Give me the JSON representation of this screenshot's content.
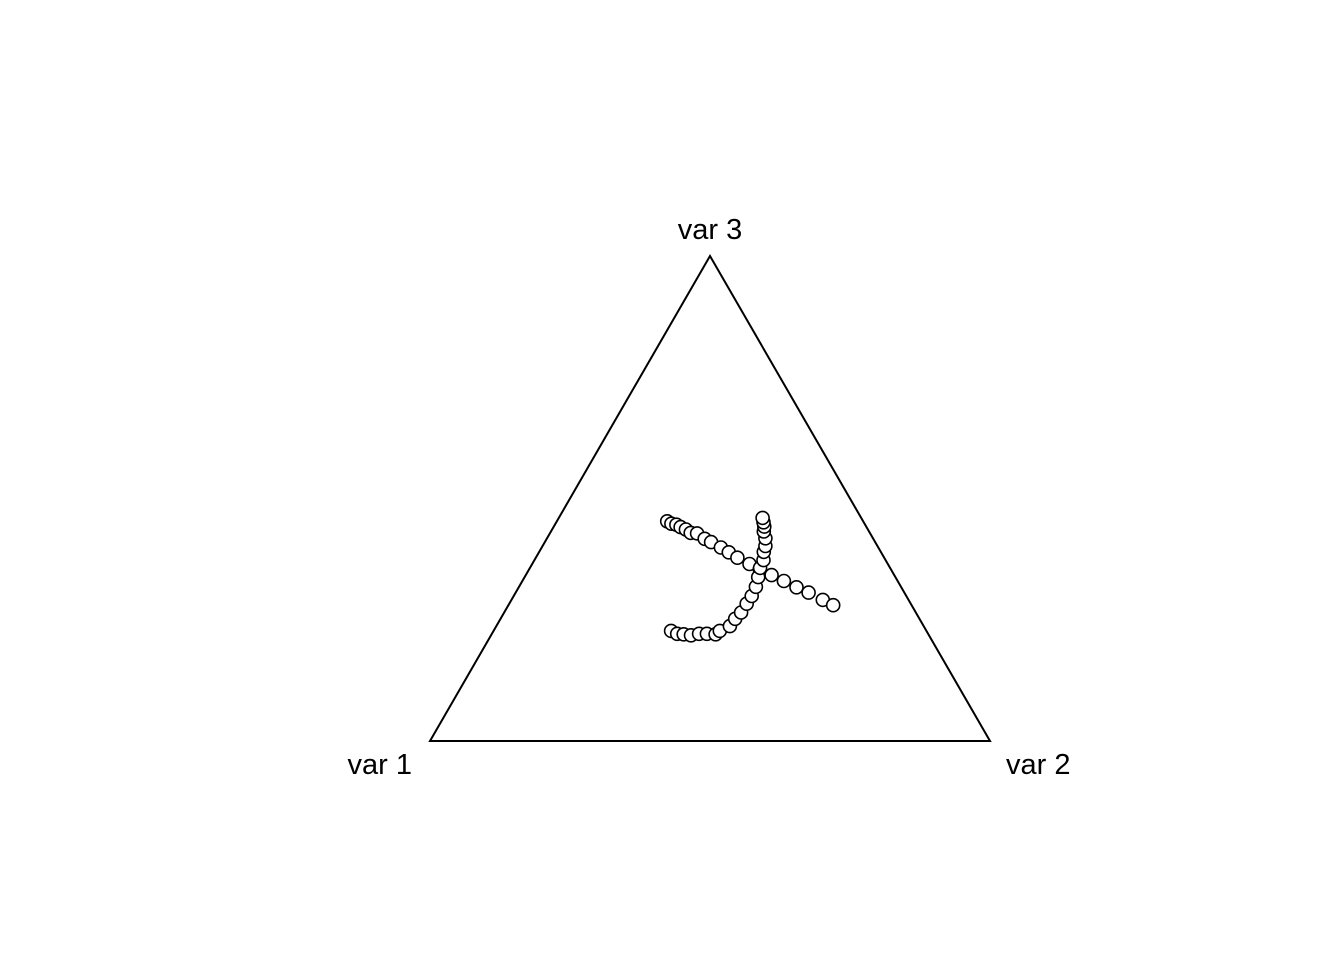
{
  "chart_data": {
    "type": "scatter",
    "subtype": "ternary",
    "title": "",
    "vertices": [
      "var 1",
      "var 2",
      "var 3"
    ],
    "point_style": "open-circle",
    "colors": {
      "stroke": "#000000",
      "fill": "#ffffff",
      "background": "#ffffff"
    },
    "series": [
      {
        "points": [
          [
            0.35,
            0.197,
            0.453
          ],
          [
            0.345,
            0.207,
            0.448
          ],
          [
            0.337,
            0.217,
            0.446
          ],
          [
            0.332,
            0.227,
            0.441
          ],
          [
            0.325,
            0.239,
            0.436
          ],
          [
            0.32,
            0.251,
            0.429
          ],
          [
            0.309,
            0.263,
            0.428
          ],
          [
            0.301,
            0.282,
            0.417
          ],
          [
            0.293,
            0.297,
            0.41
          ],
          [
            0.281,
            0.32,
            0.399
          ],
          [
            0.272,
            0.339,
            0.389
          ],
          [
            0.262,
            0.36,
            0.378
          ],
          [
            0.247,
            0.388,
            0.365
          ],
          [
            0.234,
            0.412,
            0.354
          ],
          [
            0.219,
            0.439,
            0.342
          ],
          [
            0.203,
            0.467,
            0.33
          ],
          [
            0.187,
            0.496,
            0.317
          ],
          [
            0.171,
            0.523,
            0.306
          ],
          [
            0.153,
            0.556,
            0.291
          ],
          [
            0.14,
            0.58,
            0.28
          ]
        ]
      },
      {
        "points": [
          [
            0.456,
            0.317,
            0.227
          ],
          [
            0.448,
            0.331,
            0.221
          ],
          [
            0.437,
            0.343,
            0.22
          ],
          [
            0.425,
            0.357,
            0.218
          ],
          [
            0.409,
            0.37,
            0.221
          ],
          [
            0.395,
            0.384,
            0.221
          ],
          [
            0.38,
            0.4,
            0.22
          ],
          [
            0.369,
            0.404,
            0.227
          ],
          [
            0.346,
            0.417,
            0.237
          ],
          [
            0.329,
            0.419,
            0.252
          ],
          [
            0.312,
            0.423,
            0.265
          ],
          [
            0.293,
            0.424,
            0.283
          ],
          [
            0.276,
            0.425,
            0.299
          ],
          [
            0.259,
            0.423,
            0.318
          ],
          [
            0.245,
            0.417,
            0.338
          ],
          [
            0.232,
            0.411,
            0.357
          ],
          [
            0.218,
            0.409,
            0.373
          ],
          [
            0.209,
            0.401,
            0.39
          ],
          [
            0.2,
            0.398,
            0.402
          ],
          [
            0.192,
            0.39,
            0.418
          ],
          [
            0.188,
            0.38,
            0.432
          ],
          [
            0.182,
            0.376,
            0.442
          ],
          [
            0.179,
            0.37,
            0.451
          ],
          [
            0.176,
            0.364,
            0.46
          ]
        ]
      }
    ]
  }
}
